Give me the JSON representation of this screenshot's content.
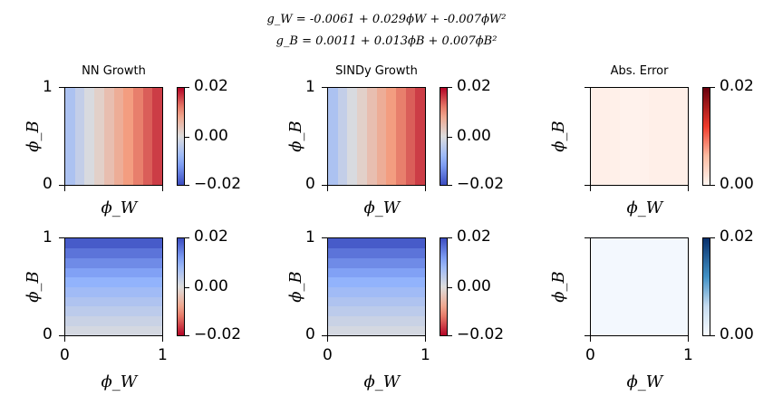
{
  "suptitle": {
    "line1": "g_W = -0.0061 + 0.029ϕW + -0.007ϕW²",
    "line2": "g_B = 0.0011 + 0.013ϕB + 0.007ϕB²"
  },
  "chart_data": [
    {
      "type": "heatmap",
      "title": "NN Growth",
      "xlabel": "ϕ_W",
      "ylabel": "ϕ_B",
      "xlim": [
        0,
        1
      ],
      "ylim": [
        0,
        1
      ],
      "colormap": "coolwarm",
      "clim": [
        -0.02,
        0.02
      ],
      "cbar_ticks": [
        "0.02",
        "0.00",
        "−0.02"
      ],
      "x_ticks": [],
      "y_ticks": [
        "1",
        "0"
      ],
      "gradient_axis": "x",
      "values": [
        -0.0061,
        -0.0033,
        -0.0006,
        0.002,
        0.0046,
        0.0071,
        0.0095,
        0.0118,
        0.014,
        0.0162
      ]
    },
    {
      "type": "heatmap",
      "title": "SINDy Growth",
      "xlabel": "ϕ_W",
      "ylabel": "ϕ_B",
      "xlim": [
        0,
        1
      ],
      "ylim": [
        0,
        1
      ],
      "colormap": "coolwarm",
      "clim": [
        -0.02,
        0.02
      ],
      "cbar_ticks": [
        "0.02",
        "0.00",
        "−0.02"
      ],
      "x_ticks": [],
      "y_ticks": [
        "1",
        "0"
      ],
      "gradient_axis": "x",
      "values": [
        -0.0061,
        -0.0033,
        -0.0006,
        0.002,
        0.0046,
        0.0071,
        0.0095,
        0.0118,
        0.014,
        0.0162
      ]
    },
    {
      "type": "heatmap",
      "title": "Abs. Error",
      "xlabel": "ϕ_W",
      "ylabel": "ϕ_B",
      "xlim": [
        0,
        1
      ],
      "ylim": [
        0,
        1
      ],
      "colormap": "Reds",
      "clim": [
        0,
        0.02
      ],
      "cbar_ticks": [
        "0.02",
        "0.00"
      ],
      "x_ticks": [],
      "y_ticks": [],
      "gradient_axis": "x",
      "values": [
        0.0006,
        0.0006,
        0.0005,
        0.0003,
        0.0003,
        0.0004,
        0.0006,
        0.0006,
        0.0006,
        0.0006
      ]
    },
    {
      "type": "heatmap",
      "title": "",
      "xlabel": "ϕ_W",
      "ylabel": "ϕ_B",
      "xlim": [
        0,
        1
      ],
      "ylim": [
        0,
        1
      ],
      "colormap": "coolwarm_r",
      "clim": [
        -0.02,
        0.02
      ],
      "cbar_ticks": [
        "0.02",
        "0.00",
        "−0.02"
      ],
      "x_ticks": [
        "0",
        "1"
      ],
      "y_ticks": [
        "1",
        "0"
      ],
      "gradient_axis": "y",
      "values": [
        0.0011,
        0.0025,
        0.0041,
        0.0057,
        0.0075,
        0.0094,
        0.0115,
        0.0137,
        0.016,
        0.0185
      ]
    },
    {
      "type": "heatmap",
      "title": "",
      "xlabel": "ϕ_W",
      "ylabel": "ϕ_B",
      "xlim": [
        0,
        1
      ],
      "ylim": [
        0,
        1
      ],
      "colormap": "coolwarm_r",
      "clim": [
        -0.02,
        0.02
      ],
      "cbar_ticks": [
        "0.02",
        "0.00",
        "−0.02"
      ],
      "x_ticks": [
        "0",
        "1"
      ],
      "y_ticks": [
        "1",
        "0"
      ],
      "gradient_axis": "y",
      "values": [
        0.0011,
        0.0025,
        0.0041,
        0.0057,
        0.0075,
        0.0094,
        0.0115,
        0.0137,
        0.016,
        0.0185
      ]
    },
    {
      "type": "heatmap",
      "title": "",
      "xlabel": "ϕ_W",
      "ylabel": "ϕ_B",
      "xlim": [
        0,
        1
      ],
      "ylim": [
        0,
        1
      ],
      "colormap": "Blues",
      "clim": [
        0,
        0.02
      ],
      "cbar_ticks": [
        "0.02",
        "0.00"
      ],
      "x_ticks": [
        "0",
        "1"
      ],
      "y_ticks": [],
      "gradient_axis": "y",
      "values": [
        0.0005,
        0.0005,
        0.0005,
        0.0005,
        0.0005,
        0.0005,
        0.0005,
        0.0005,
        0.0005,
        0.0005
      ]
    }
  ]
}
